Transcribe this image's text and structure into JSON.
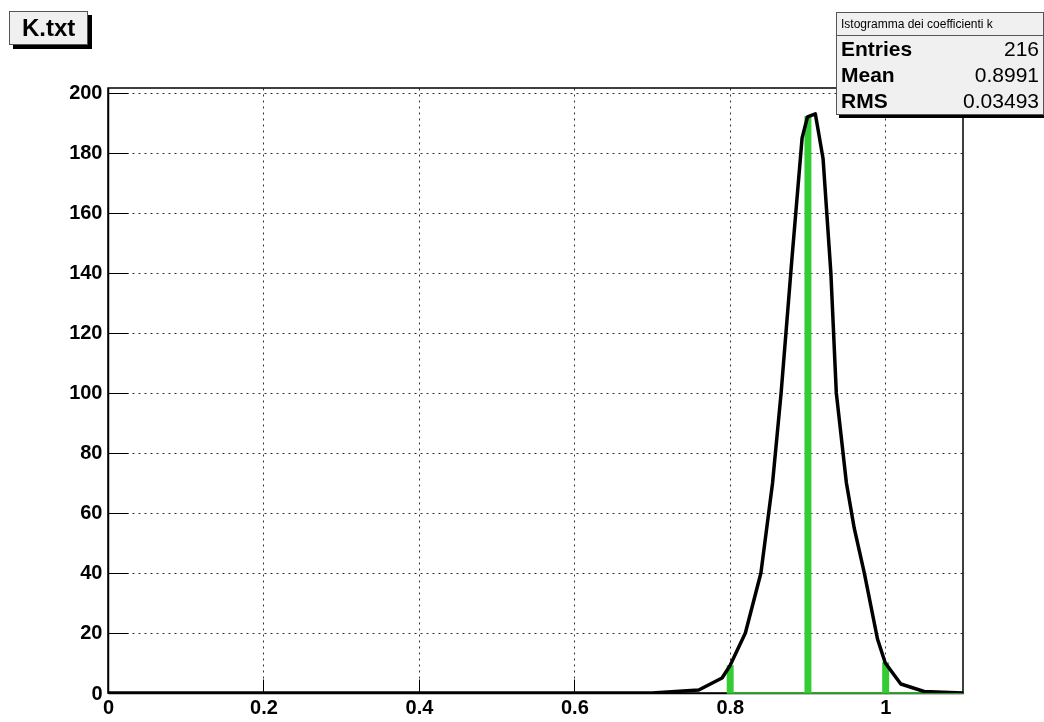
{
  "chart_data": {
    "type": "histogram",
    "title": "K.txt",
    "bins": [
      0.797,
      0.804,
      0.897,
      0.904,
      0.997,
      1.004,
      1.1
    ],
    "values": [
      9,
      0,
      192,
      0,
      10,
      0
    ],
    "color": "#33cc33",
    "xlim": [
      0,
      1.1
    ],
    "xticks": [
      0,
      0.2,
      0.4,
      0.6,
      0.8,
      1
    ],
    "ylim": [
      0,
      201.6
    ],
    "yticks": [
      0,
      20,
      40,
      60,
      80,
      100,
      120,
      140,
      160,
      180,
      200
    ],
    "grid": true,
    "series": [
      {
        "type": "line",
        "color": "#000000",
        "x": [
          0,
          0.7,
          0.76,
          0.79,
          0.8,
          0.82,
          0.84,
          0.855,
          0.866,
          0.88,
          0.893,
          0.9,
          0.91,
          0.92,
          0.93,
          0.937,
          0.95,
          0.96,
          0.973,
          0.99,
          1.0,
          1.02,
          1.05,
          1.1
        ],
        "values": [
          0,
          0,
          1,
          5,
          9,
          20,
          40,
          70,
          100,
          145,
          185,
          192,
          193,
          178,
          140,
          100,
          70,
          55,
          40,
          18,
          10,
          3,
          0.5,
          0
        ]
      }
    ],
    "annotations": [
      "Istogramma dei coefficienti k",
      "Entries",
      "216",
      "Mean",
      "0.8991",
      "RMS",
      "0.03493"
    ]
  }
}
